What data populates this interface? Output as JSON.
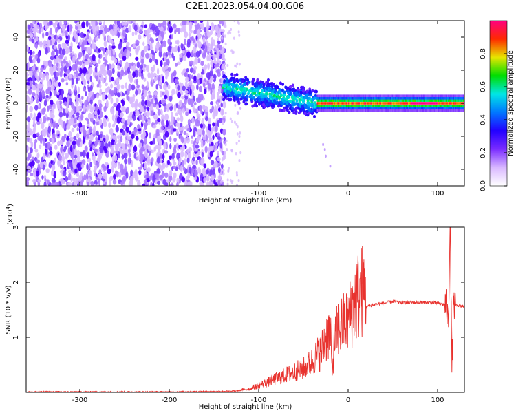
{
  "title": "C2E1.2023.054.04.00.G06",
  "colors": {
    "snr_line": "#e8322e",
    "colormap": [
      "#ffffff",
      "#d9b8ff",
      "#7a2cff",
      "#2200ff",
      "#0077ff",
      "#00e6e6",
      "#00dd00",
      "#e6e600",
      "#ff2a00",
      "#ff0080"
    ]
  },
  "chart_data": [
    {
      "type": "heatmap",
      "xlabel": "Height of straight line (km)",
      "ylabel": "Frequency (Hz)",
      "xlim": [
        -360,
        130
      ],
      "ylim": [
        -50,
        50
      ],
      "xticks": [
        -300,
        -200,
        -100,
        0,
        100
      ],
      "yticks": [
        -40,
        -20,
        0,
        20,
        40
      ],
      "colorbar": {
        "label": "Normalized spectral amplitude",
        "range": [
          0,
          1
        ],
        "ticks": [
          "0.0",
          "0.2",
          "0.4",
          "0.6",
          "0.8"
        ],
        "tick_values": [
          0,
          0.2,
          0.4,
          0.6,
          0.8
        ]
      },
      "regions": [
        {
          "x_range": [
            -360,
            -140
          ],
          "freq_range": [
            -50,
            50
          ],
          "amplitude": "0.0-0.2 (noise)"
        },
        {
          "x_range": [
            -140,
            -35
          ],
          "freq_center_start": 10,
          "freq_center_end": 0,
          "amplitude": "0.2-0.5"
        },
        {
          "x_range": [
            -35,
            130
          ],
          "freq_center": 0,
          "amplitude": "0.6-1.0"
        }
      ]
    },
    {
      "type": "line",
      "xlabel": "Height of straight line (km)",
      "ylabel": "SNR (10 * v/v)",
      "yscale_label": "(x10",
      "yscale_exp": "4",
      "xlim": [
        -360,
        130
      ],
      "ylim": [
        0,
        3
      ],
      "xticks": [
        -300,
        -200,
        -100,
        0,
        100
      ],
      "yticks": [
        1,
        2,
        3
      ],
      "series": [
        {
          "x": [
            -360,
            -300,
            -200,
            -130,
            -110,
            -100,
            -90,
            -80,
            -70,
            -60,
            -50,
            -40,
            -35,
            -30,
            -25,
            -20,
            -18,
            -15,
            -10,
            -5,
            0,
            5,
            10,
            20,
            30,
            40,
            50,
            60,
            70,
            80,
            90,
            100,
            105,
            110,
            112,
            114,
            116,
            118,
            120,
            125,
            130
          ],
          "y": [
            0.01,
            0.01,
            0.01,
            0.02,
            0.05,
            0.1,
            0.15,
            0.2,
            0.25,
            0.3,
            0.35,
            0.45,
            0.55,
            0.6,
            0.8,
            0.9,
            0.3,
            0.8,
            0.95,
            1.0,
            1.05,
            1.25,
            1.4,
            1.55,
            1.6,
            1.62,
            1.65,
            1.63,
            1.63,
            1.63,
            1.63,
            1.62,
            1.6,
            1.58,
            1.2,
            3.0,
            0.5,
            1.6,
            1.58,
            1.57,
            1.57
          ]
        }
      ]
    }
  ]
}
